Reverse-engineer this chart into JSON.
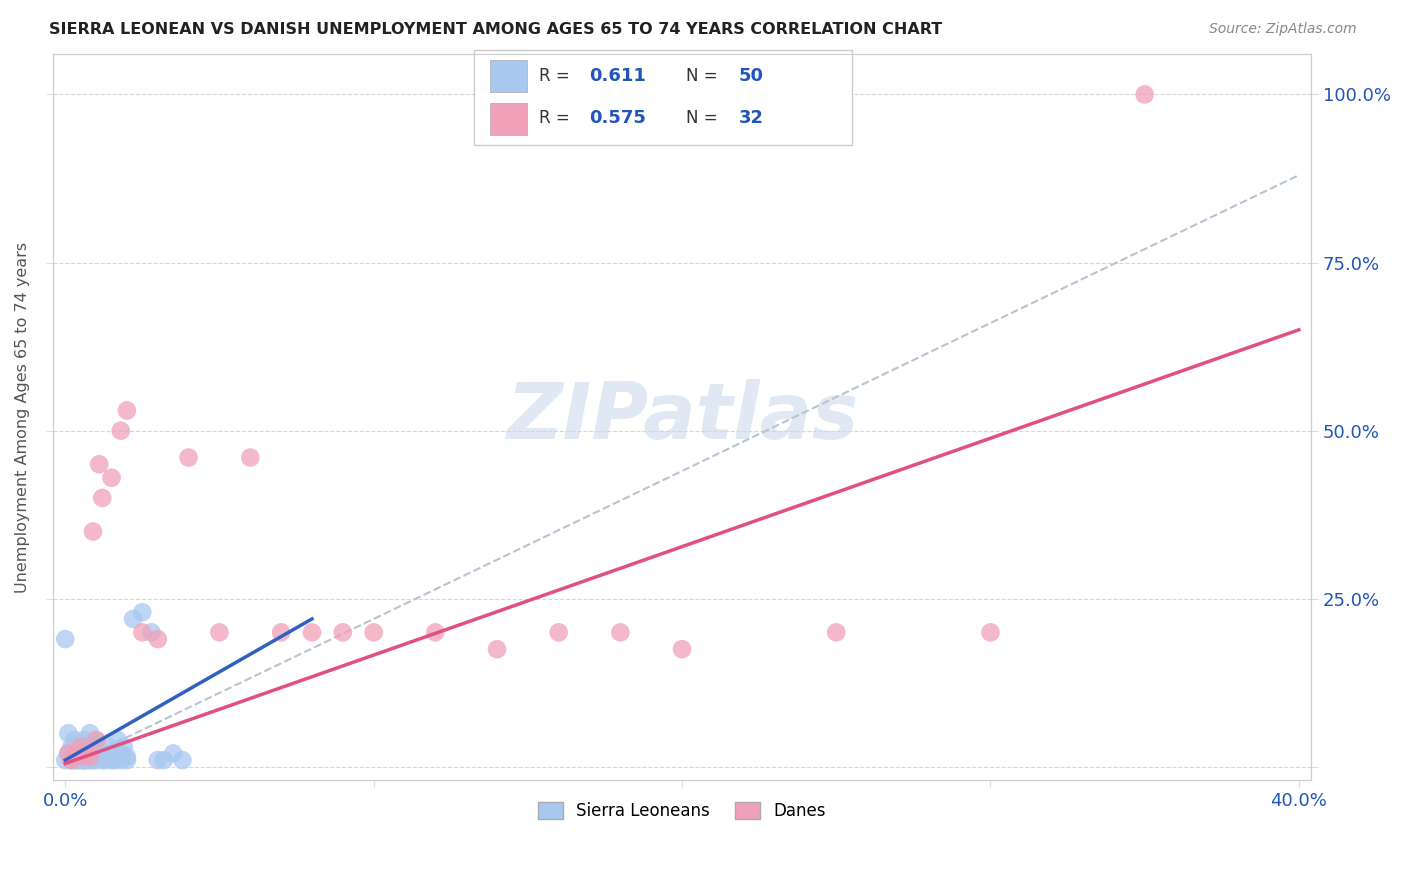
{
  "title": "SIERRA LEONEAN VS DANISH UNEMPLOYMENT AMONG AGES 65 TO 74 YEARS CORRELATION CHART",
  "source": "Source: ZipAtlas.com",
  "ylabel": "Unemployment Among Ages 65 to 74 years",
  "sl_R": 0.611,
  "sl_N": 50,
  "dane_R": 0.575,
  "dane_N": 32,
  "sl_color": "#a8c8f0",
  "dane_color": "#f0a0b8",
  "sl_line_color": "#3060c0",
  "dane_line_color": "#e05080",
  "trend_color": "#b8c4d0",
  "watermark": "ZIPatlas",
  "sl_x": [
    0.0,
    0.001,
    0.001,
    0.002,
    0.002,
    0.003,
    0.003,
    0.003,
    0.004,
    0.004,
    0.005,
    0.005,
    0.005,
    0.006,
    0.006,
    0.007,
    0.007,
    0.008,
    0.008,
    0.009,
    0.009,
    0.01,
    0.01,
    0.011,
    0.012,
    0.013,
    0.014,
    0.015,
    0.016,
    0.017,
    0.018,
    0.019,
    0.02,
    0.022,
    0.025,
    0.028,
    0.03,
    0.032,
    0.035,
    0.038,
    0.0,
    0.002,
    0.004,
    0.006,
    0.008,
    0.01,
    0.012,
    0.015,
    0.018,
    0.02
  ],
  "sl_y": [
    0.19,
    0.02,
    0.05,
    0.01,
    0.03,
    0.01,
    0.02,
    0.04,
    0.01,
    0.02,
    0.01,
    0.02,
    0.03,
    0.01,
    0.04,
    0.01,
    0.03,
    0.02,
    0.05,
    0.01,
    0.03,
    0.02,
    0.04,
    0.03,
    0.02,
    0.01,
    0.03,
    0.02,
    0.01,
    0.04,
    0.02,
    0.03,
    0.015,
    0.22,
    0.23,
    0.2,
    0.01,
    0.01,
    0.02,
    0.01,
    0.01,
    0.01,
    0.01,
    0.01,
    0.01,
    0.01,
    0.01,
    0.01,
    0.01,
    0.01
  ],
  "dane_x": [
    0.001,
    0.002,
    0.003,
    0.004,
    0.005,
    0.006,
    0.007,
    0.008,
    0.009,
    0.01,
    0.011,
    0.012,
    0.015,
    0.018,
    0.02,
    0.025,
    0.03,
    0.04,
    0.05,
    0.06,
    0.07,
    0.08,
    0.09,
    0.1,
    0.12,
    0.14,
    0.16,
    0.18,
    0.2,
    0.25,
    0.3,
    0.35
  ],
  "dane_y": [
    0.02,
    0.01,
    0.015,
    0.02,
    0.03,
    0.015,
    0.02,
    0.015,
    0.35,
    0.04,
    0.45,
    0.4,
    0.43,
    0.5,
    0.53,
    0.2,
    0.19,
    0.46,
    0.2,
    0.46,
    0.2,
    0.2,
    0.2,
    0.2,
    0.2,
    0.175,
    0.2,
    0.2,
    0.175,
    0.2,
    0.2,
    1.0
  ],
  "xlim": [
    -0.004,
    0.404
  ],
  "ylim": [
    -0.02,
    1.06
  ],
  "xtick_vals": [
    0.0,
    0.1,
    0.2,
    0.3,
    0.4
  ],
  "ytick_vals": [
    0.0,
    0.25,
    0.5,
    0.75,
    1.0
  ],
  "xtick_labels": [
    "0.0%",
    "",
    "",
    "",
    "40.0%"
  ],
  "ytick_labels_right": [
    "",
    "25.0%",
    "50.0%",
    "75.0%",
    "100.0%"
  ]
}
